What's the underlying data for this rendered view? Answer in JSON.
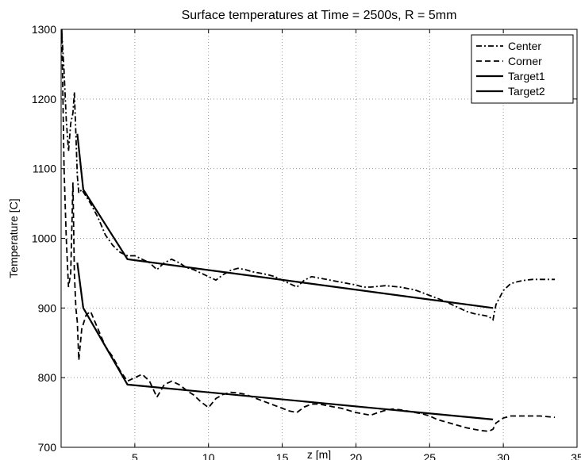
{
  "chart_data": {
    "type": "line",
    "title": "Surface temperatures at Time = 2500s, R = 5mm",
    "xlabel": "z [m]",
    "ylabel": "Temperature [C]",
    "xlim": [
      0,
      35
    ],
    "ylim": [
      700,
      1300
    ],
    "xticks": [
      5,
      10,
      15,
      20,
      25,
      30,
      35
    ],
    "yticks": [
      700,
      800,
      900,
      1000,
      1100,
      1200,
      1300
    ],
    "grid": true,
    "legend_position": "top-right",
    "series": [
      {
        "name": "Center",
        "style": "dashdot",
        "x": [
          0.05,
          0.2,
          0.35,
          0.5,
          0.65,
          0.8,
          0.9,
          1.0,
          1.1,
          1.2,
          1.4,
          1.7,
          2.0,
          2.5,
          3.0,
          3.5,
          4.0,
          4.5,
          5.0,
          5.5,
          6.0,
          6.5,
          7.0,
          7.5,
          8.0,
          8.5,
          9.0,
          9.5,
          10.0,
          10.5,
          11.0,
          11.5,
          12.0,
          12.5,
          13.0,
          13.5,
          14.0,
          14.5,
          15.0,
          15.5,
          16.0,
          16.5,
          17.0,
          17.5,
          18.0,
          18.5,
          19.0,
          19.5,
          20.0,
          20.5,
          21.0,
          21.5,
          22.0,
          22.5,
          23.0,
          23.5,
          24.0,
          24.5,
          25.0,
          25.5,
          26.0,
          26.5,
          27.0,
          27.5,
          28.0,
          28.5,
          29.0,
          29.3,
          29.5,
          30.0,
          30.5,
          31.0,
          31.5,
          32.0,
          32.5,
          33.0,
          33.5
        ],
        "y": [
          1295,
          1240,
          1170,
          1125,
          1165,
          1180,
          1210,
          1150,
          1090,
          1065,
          1070,
          1060,
          1050,
          1030,
          1005,
          990,
          980,
          975,
          975,
          970,
          965,
          955,
          965,
          970,
          965,
          958,
          955,
          950,
          945,
          940,
          948,
          954,
          957,
          955,
          952,
          950,
          948,
          945,
          940,
          935,
          930,
          940,
          945,
          943,
          941,
          939,
          937,
          935,
          933,
          930,
          930,
          931,
          932,
          931,
          930,
          928,
          926,
          922,
          918,
          914,
          910,
          905,
          900,
          895,
          892,
          890,
          888,
          883,
          905,
          925,
          935,
          938,
          940,
          941,
          941,
          941,
          941
        ]
      },
      {
        "name": "Corner",
        "style": "dashed",
        "x": [
          0.05,
          0.2,
          0.35,
          0.5,
          0.65,
          0.8,
          0.9,
          1.0,
          1.1,
          1.2,
          1.4,
          1.7,
          2.0,
          2.5,
          3.0,
          3.5,
          4.0,
          4.5,
          5.0,
          5.5,
          6.0,
          6.5,
          7.0,
          7.5,
          8.0,
          8.5,
          9.0,
          9.5,
          10.0,
          10.5,
          11.0,
          11.5,
          12.0,
          12.5,
          13.0,
          13.5,
          14.0,
          14.5,
          15.0,
          15.5,
          16.0,
          16.5,
          17.0,
          17.5,
          18.0,
          18.5,
          19.0,
          19.5,
          20.0,
          20.5,
          21.0,
          21.5,
          22.0,
          22.5,
          23.0,
          23.5,
          24.0,
          24.5,
          25.0,
          25.5,
          26.0,
          26.5,
          27.0,
          27.5,
          28.0,
          28.5,
          29.0,
          29.3,
          29.5,
          30.0,
          30.5,
          31.0,
          31.5,
          32.0,
          32.5,
          33.0,
          33.5
        ],
        "y": [
          1300,
          1100,
          1000,
          930,
          950,
          1080,
          950,
          900,
          880,
          825,
          870,
          890,
          895,
          870,
          845,
          830,
          810,
          795,
          800,
          805,
          795,
          772,
          790,
          795,
          790,
          782,
          775,
          765,
          757,
          770,
          776,
          779,
          778,
          776,
          772,
          768,
          764,
          760,
          756,
          752,
          750,
          758,
          762,
          762,
          760,
          758,
          756,
          753,
          750,
          748,
          746,
          750,
          753,
          755,
          754,
          752,
          750,
          748,
          745,
          740,
          737,
          734,
          731,
          728,
          726,
          724,
          723,
          726,
          735,
          742,
          745,
          745,
          745,
          745,
          745,
          744,
          743
        ]
      },
      {
        "name": "Target1",
        "style": "solid",
        "x": [
          1.1,
          1.5,
          4.5,
          29.3
        ],
        "y": [
          1150,
          1070,
          970,
          900
        ]
      },
      {
        "name": "Target2",
        "style": "solid",
        "x": [
          1.1,
          1.5,
          4.5,
          29.3
        ],
        "y": [
          965,
          900,
          790,
          740
        ]
      }
    ]
  }
}
